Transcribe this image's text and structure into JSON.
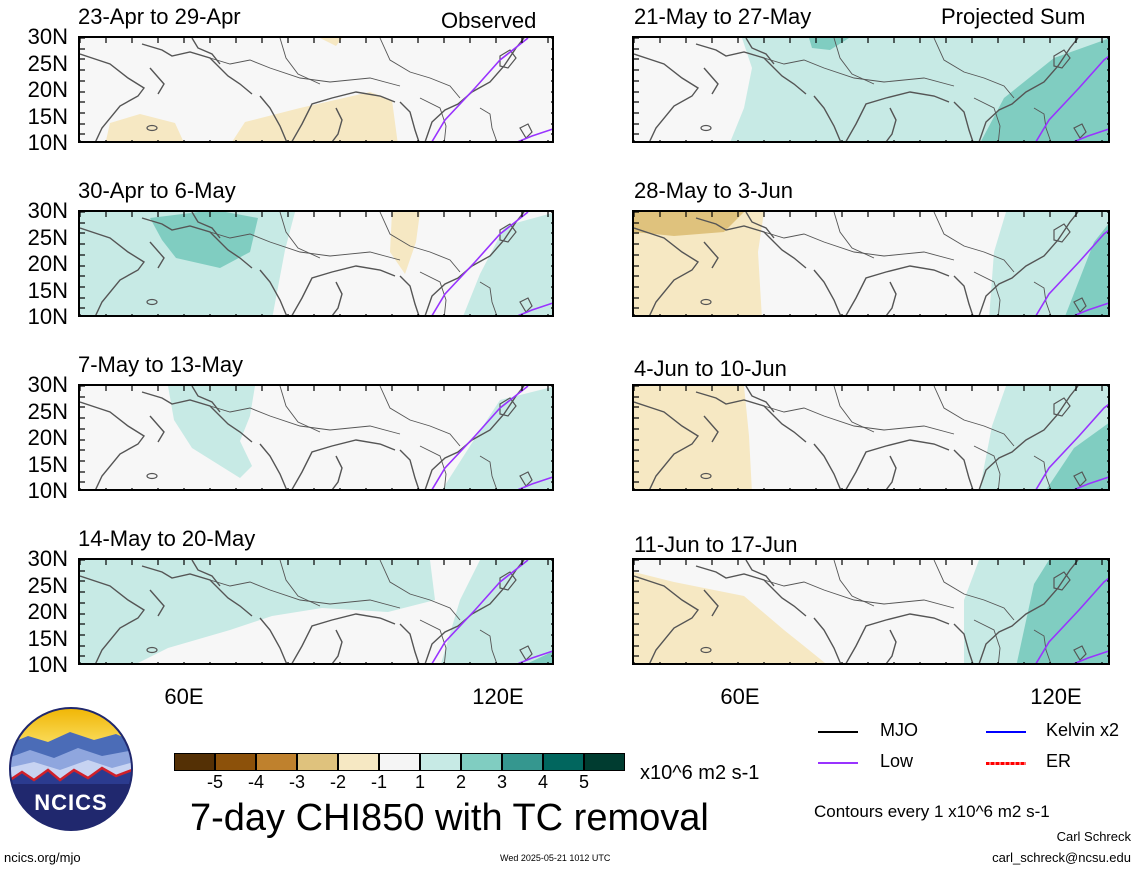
{
  "header": {
    "left_label": "Observed",
    "right_label": "Projected Sum"
  },
  "colors": {
    "map_background": "#f7f7f7",
    "positive_1": "#c7eae5",
    "positive_2": "#80cdc1",
    "positive_3": "#35978f",
    "negative_1": "#f6e8c3",
    "negative_2": "#dfc27d",
    "coast_line": "#555555",
    "low_line": "#9933ff",
    "kelvin_line": "#0000ff",
    "er_line": "#ff0000",
    "mjo_line": "#000000"
  },
  "panels": [
    {
      "title": "23-Apr to 29-Apr",
      "column": "observed"
    },
    {
      "title": "30-Apr to 6-May",
      "column": "observed"
    },
    {
      "title": "7-May to 13-May",
      "column": "observed"
    },
    {
      "title": "14-May to 20-May",
      "column": "observed"
    },
    {
      "title": "21-May to 27-May",
      "column": "projected"
    },
    {
      "title": "28-May to 3-Jun",
      "column": "projected"
    },
    {
      "title": "4-Jun to 10-Jun",
      "column": "projected"
    },
    {
      "title": "11-Jun to 17-Jun",
      "column": "projected"
    }
  ],
  "axis": {
    "lat_labels": [
      "30N",
      "25N",
      "20N",
      "15N",
      "10N"
    ],
    "lon_labels": [
      "60E",
      "120E"
    ]
  },
  "colorbar": {
    "labels": [
      "-5",
      "-4",
      "-3",
      "-2",
      "-1",
      "1",
      "2",
      "3",
      "4",
      "5"
    ],
    "colors": [
      "#543005",
      "#8c510a",
      "#bf812d",
      "#dfc27d",
      "#f6e8c3",
      "#f5f5f5",
      "#c7eae5",
      "#80cdc1",
      "#35978f",
      "#01665e",
      "#003c30"
    ],
    "units": "x10^6 m2 s-1"
  },
  "legend": {
    "mjo": "MJO",
    "kelvin": "Kelvin x2",
    "low": "Low",
    "er": "ER",
    "contours_note": "Contours every 1 x10^6 m2 s-1"
  },
  "footer": {
    "main_title": "7-day CHI850 with TC removal",
    "logo_text": "NCICS",
    "website": "ncics.org/mjo",
    "timestamp": "Wed 2025-05-21 1012 UTC",
    "author": "Carl Schreck",
    "email": "carl_schreck@ncsu.edu"
  }
}
